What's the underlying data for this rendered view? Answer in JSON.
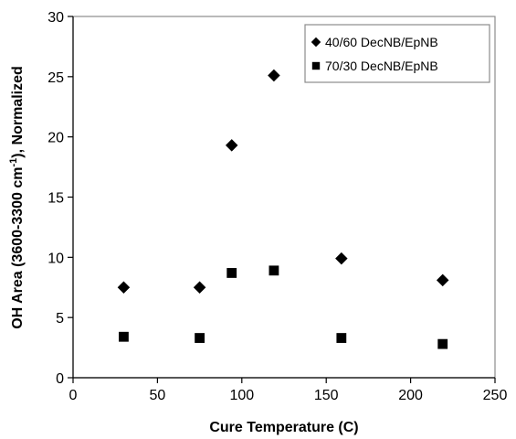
{
  "chart_data": {
    "type": "scatter",
    "xlabel": "Cure Temperature (C)",
    "ylabel_main": "OH Area (3600-3300 cm",
    "ylabel_sup": "-1",
    "ylabel_tail": "), Normalized",
    "xlim": [
      0,
      250
    ],
    "ylim": [
      0,
      30
    ],
    "xticks": [
      "0",
      "50",
      "100",
      "150",
      "200",
      "250"
    ],
    "yticks": [
      "0",
      "5",
      "10",
      "15",
      "20",
      "25",
      "30"
    ],
    "grid": false,
    "legend_position": "top-right",
    "series": [
      {
        "name": "40/60 DecNB/EpNB",
        "marker": "diamond",
        "color": "#000000",
        "points": [
          {
            "x": 30,
            "y": 7.5
          },
          {
            "x": 75,
            "y": 7.5
          },
          {
            "x": 94,
            "y": 19.3
          },
          {
            "x": 119,
            "y": 25.1
          },
          {
            "x": 159,
            "y": 9.9
          },
          {
            "x": 219,
            "y": 8.1
          }
        ]
      },
      {
        "name": "70/30 DecNB/EpNB",
        "marker": "square",
        "color": "#000000",
        "points": [
          {
            "x": 30,
            "y": 3.4
          },
          {
            "x": 75,
            "y": 3.3
          },
          {
            "x": 94,
            "y": 8.7
          },
          {
            "x": 119,
            "y": 8.9
          },
          {
            "x": 159,
            "y": 3.3
          },
          {
            "x": 219,
            "y": 2.8
          }
        ]
      }
    ]
  }
}
